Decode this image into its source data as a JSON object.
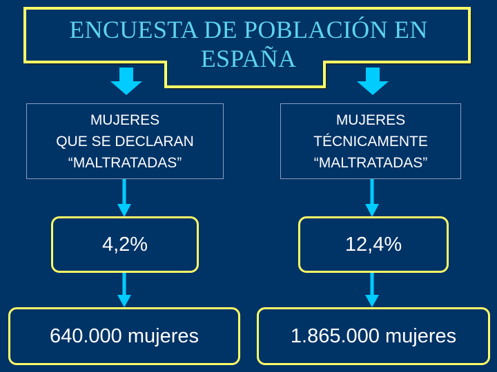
{
  "title": {
    "line1": "ENCUESTA DE POBLACIÓN EN",
    "line2": "ESPAÑA"
  },
  "colors": {
    "background": "#003366",
    "title_text": "#5fd3f0",
    "border_yellow": "#ffff66",
    "arrow_cyan": "#00ccff"
  },
  "left_column": {
    "category_lines": [
      "MUJERES",
      "QUE SE DECLARAN",
      "“MALTRATADAS”"
    ],
    "percentage": "4,2%",
    "count": "640.000 mujeres"
  },
  "right_column": {
    "category_lines": [
      "MUJERES",
      "TÉCNICAMENTE",
      "“MALTRATADAS”"
    ],
    "percentage": "12,4%",
    "count": "1.865.000 mujeres"
  }
}
